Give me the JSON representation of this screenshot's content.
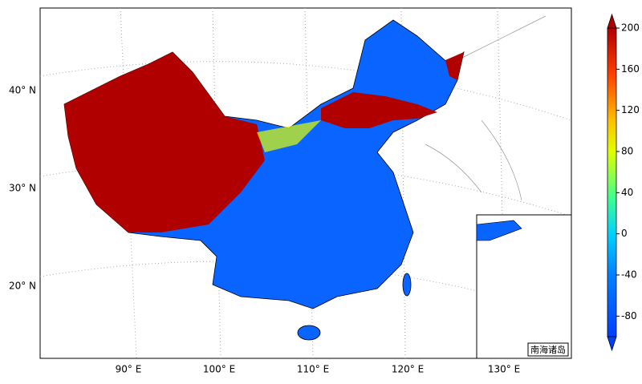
{
  "map": {
    "latitude_labels": [
      "40° N",
      "30° N",
      "20° N"
    ],
    "longitude_labels": [
      "90° E",
      "100° E",
      "110° E",
      "120° E",
      "130° E"
    ],
    "inset_label": "南海诸岛"
  },
  "colorbar": {
    "range": [
      -100,
      200
    ],
    "ticks": [
      200,
      160,
      120,
      80,
      40,
      0,
      -40,
      -80
    ]
  }
}
